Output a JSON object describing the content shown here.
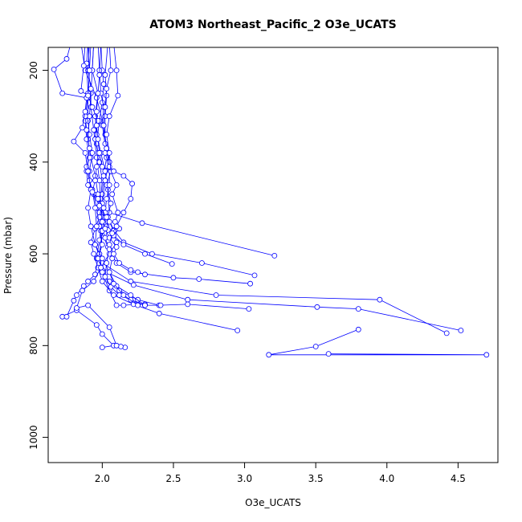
{
  "chart_data": {
    "type": "line",
    "title": "ATOM3 Northeast_Pacific_2 O3e_UCATS",
    "xlabel": "O3e_UCATS",
    "ylabel": "Pressure (mbar)",
    "xlim": [
      1.62,
      4.78
    ],
    "ylim": [
      1055,
      150
    ],
    "y_inverted": true,
    "x_ticks": [
      "2.0",
      "2.5",
      "3.0",
      "3.5",
      "4.0",
      "4.5"
    ],
    "y_ticks": [
      "200",
      "400",
      "600",
      "800",
      "1000"
    ],
    "grid": false,
    "series_color": "#0000ff",
    "marker": "open-circle",
    "series": [
      {
        "points": [
          [
            2.3,
            710
          ],
          [
            2.25,
            710
          ],
          [
            2.15,
            712
          ],
          [
            2.1,
            712
          ],
          [
            2.05,
            680
          ],
          [
            2.0,
            640
          ],
          [
            1.98,
            600
          ],
          [
            2.0,
            560
          ],
          [
            2.02,
            520
          ],
          [
            1.99,
            480
          ],
          [
            2.0,
            440
          ],
          [
            1.98,
            400
          ],
          [
            1.96,
            360
          ],
          [
            1.98,
            310
          ],
          [
            2.0,
            270
          ],
          [
            2.01,
            230
          ],
          [
            2.0,
            200
          ],
          [
            1.99,
            140
          ]
        ]
      },
      {
        "points": [
          [
            3.8,
            765
          ],
          [
            3.5,
            802
          ],
          [
            3.17,
            820
          ],
          [
            4.7,
            820
          ],
          [
            3.59,
            818
          ]
        ]
      },
      {
        "points": [
          [
            4.42,
            773
          ],
          [
            3.95,
            700
          ],
          [
            2.8,
            690
          ],
          [
            2.2,
            660
          ],
          [
            2.0,
            620
          ],
          [
            1.95,
            580
          ],
          [
            1.92,
            540
          ],
          [
            1.9,
            500
          ],
          [
            1.92,
            460
          ],
          [
            1.91,
            420
          ],
          [
            1.93,
            380
          ],
          [
            1.91,
            340
          ],
          [
            1.9,
            310
          ],
          [
            1.9,
            260
          ],
          [
            1.91,
            200
          ],
          [
            1.9,
            140
          ]
        ]
      },
      {
        "points": [
          [
            4.52,
            767
          ],
          [
            3.8,
            720
          ],
          [
            3.51,
            716
          ],
          [
            2.6,
            700
          ],
          [
            2.22,
            668
          ],
          [
            2.03,
            640
          ],
          [
            1.96,
            610
          ],
          [
            1.98,
            570
          ],
          [
            2.03,
            540
          ],
          [
            2.01,
            510
          ],
          [
            2.0,
            470
          ],
          [
            2.01,
            430
          ],
          [
            2.03,
            390
          ],
          [
            2.02,
            340
          ],
          [
            2.02,
            300
          ],
          [
            2.03,
            255
          ],
          [
            2.02,
            210
          ],
          [
            2.04,
            140
          ]
        ]
      },
      {
        "points": [
          [
            3.21,
            604
          ],
          [
            2.28,
            533
          ],
          [
            2.05,
            510
          ],
          [
            2.04,
            460
          ],
          [
            2.02,
            420
          ],
          [
            1.99,
            380
          ],
          [
            1.96,
            340
          ],
          [
            1.95,
            300
          ],
          [
            1.97,
            250
          ],
          [
            1.93,
            200
          ],
          [
            1.94,
            140
          ]
        ]
      },
      {
        "points": [
          [
            3.07,
            647
          ],
          [
            2.7,
            620
          ],
          [
            2.35,
            600
          ],
          [
            2.15,
            575
          ],
          [
            2.08,
            548
          ],
          [
            2.04,
            520
          ],
          [
            2.06,
            490
          ],
          [
            2.03,
            450
          ],
          [
            2.06,
            420
          ],
          [
            2.02,
            380
          ],
          [
            2.01,
            320
          ],
          [
            1.96,
            260
          ],
          [
            1.88,
            200
          ],
          [
            1.85,
            140
          ]
        ]
      },
      {
        "points": [
          [
            3.04,
            665
          ],
          [
            2.68,
            655
          ],
          [
            2.5,
            652
          ],
          [
            2.2,
            640
          ],
          [
            2.1,
            620
          ],
          [
            2.04,
            585
          ],
          [
            1.99,
            550
          ],
          [
            1.98,
            510
          ],
          [
            1.97,
            470
          ],
          [
            1.95,
            430
          ],
          [
            1.92,
            390
          ],
          [
            1.9,
            350
          ],
          [
            1.91,
            300
          ],
          [
            1.92,
            250
          ],
          [
            1.93,
            200
          ],
          [
            1.94,
            140
          ]
        ]
      },
      {
        "points": [
          [
            3.03,
            720
          ],
          [
            2.6,
            710
          ],
          [
            2.4,
            712
          ],
          [
            2.25,
            700
          ],
          [
            2.12,
            680
          ],
          [
            2.05,
            660
          ],
          [
            2.0,
            640
          ],
          [
            1.98,
            600
          ],
          [
            2.0,
            550
          ],
          [
            1.99,
            490
          ],
          [
            1.98,
            440
          ],
          [
            1.96,
            390
          ],
          [
            1.94,
            330
          ],
          [
            1.92,
            280
          ],
          [
            1.92,
            240
          ],
          [
            1.9,
            200
          ],
          [
            1.91,
            140
          ]
        ]
      },
      {
        "points": [
          [
            2.95,
            767
          ],
          [
            2.4,
            730
          ],
          [
            2.22,
            710
          ],
          [
            2.08,
            690
          ],
          [
            2.0,
            660
          ],
          [
            1.97,
            630
          ],
          [
            1.94,
            600
          ],
          [
            1.92,
            575
          ],
          [
            1.95,
            545
          ],
          [
            1.98,
            520
          ],
          [
            2.0,
            490
          ],
          [
            2.02,
            440
          ],
          [
            2.05,
            400
          ],
          [
            2.02,
            360
          ],
          [
            2.0,
            320
          ],
          [
            2.01,
            280
          ],
          [
            1.99,
            250
          ],
          [
            1.98,
            200
          ],
          [
            1.97,
            140
          ]
        ]
      },
      {
        "points": [
          [
            2.0,
            804
          ],
          [
            2.08,
            800
          ],
          [
            2.0,
            775
          ],
          [
            1.96,
            755
          ],
          [
            1.82,
            723
          ],
          [
            1.72,
            737
          ],
          [
            1.75,
            737
          ],
          [
            1.8,
            702
          ],
          [
            1.82,
            690
          ],
          [
            1.87,
            670
          ],
          [
            1.9,
            660
          ],
          [
            1.95,
            645
          ],
          [
            1.97,
            610
          ],
          [
            2.0,
            580
          ],
          [
            1.98,
            540
          ],
          [
            1.96,
            500
          ],
          [
            1.94,
            470
          ],
          [
            1.9,
            450
          ],
          [
            1.89,
            420
          ],
          [
            1.91,
            390
          ],
          [
            1.89,
            350
          ],
          [
            1.88,
            310
          ],
          [
            1.9,
            250
          ],
          [
            1.89,
            185
          ],
          [
            1.9,
            140
          ]
        ]
      },
      {
        "points": [
          [
            2.16,
            804
          ],
          [
            2.13,
            802
          ],
          [
            2.1,
            800
          ],
          [
            2.05,
            760
          ],
          [
            1.9,
            712
          ],
          [
            1.82,
            718
          ],
          [
            1.86,
            680
          ],
          [
            1.94,
            660
          ],
          [
            1.99,
            630
          ],
          [
            2.05,
            600
          ],
          [
            2.1,
            575
          ],
          [
            2.08,
            550
          ],
          [
            2.05,
            530
          ],
          [
            2.02,
            510
          ],
          [
            2.03,
            480
          ],
          [
            2.05,
            450
          ],
          [
            2.05,
            410
          ],
          [
            2.03,
            370
          ],
          [
            2.01,
            320
          ],
          [
            2.02,
            280
          ],
          [
            2.03,
            240
          ],
          [
            2.06,
            200
          ],
          [
            2.05,
            140
          ]
        ]
      },
      {
        "points": [
          [
            2.41,
            712
          ],
          [
            2.3,
            712
          ],
          [
            2.2,
            690
          ],
          [
            2.1,
            670
          ],
          [
            2.05,
            640
          ],
          [
            2.0,
            610
          ],
          [
            1.95,
            580
          ],
          [
            1.96,
            540
          ],
          [
            1.95,
            500
          ],
          [
            1.93,
            460
          ],
          [
            1.91,
            440
          ],
          [
            1.89,
            410
          ],
          [
            1.91,
            370
          ],
          [
            1.89,
            330
          ],
          [
            1.88,
            300
          ],
          [
            1.9,
            255
          ],
          [
            1.91,
            200
          ],
          [
            1.92,
            140
          ]
        ]
      },
      {
        "points": [
          [
            2.49,
            622
          ],
          [
            2.3,
            600
          ],
          [
            2.15,
            580
          ],
          [
            2.08,
            560
          ],
          [
            2.12,
            545
          ],
          [
            2.09,
            530
          ],
          [
            2.11,
            510
          ],
          [
            2.07,
            470
          ],
          [
            2.1,
            450
          ],
          [
            2.06,
            420
          ],
          [
            2.05,
            380
          ],
          [
            2.03,
            340
          ],
          [
            2.05,
            300
          ],
          [
            2.11,
            255
          ],
          [
            2.1,
            200
          ],
          [
            2.08,
            140
          ]
        ]
      },
      {
        "points": [
          [
            2.3,
            712
          ],
          [
            2.2,
            700
          ],
          [
            2.12,
            690
          ],
          [
            2.06,
            672
          ],
          [
            2.02,
            650
          ],
          [
            2.03,
            620
          ],
          [
            2.05,
            590
          ],
          [
            2.02,
            565
          ],
          [
            2.04,
            548
          ],
          [
            2.03,
            520
          ],
          [
            1.98,
            495
          ],
          [
            1.92,
            460
          ],
          [
            1.9,
            420
          ],
          [
            1.88,
            380
          ],
          [
            1.8,
            355
          ],
          [
            1.86,
            325
          ],
          [
            1.88,
            290
          ],
          [
            1.89,
            260
          ],
          [
            1.72,
            250
          ],
          [
            1.66,
            198
          ],
          [
            1.75,
            175
          ],
          [
            1.78,
            140
          ]
        ]
      },
      {
        "points": [
          [
            2.25,
            712
          ],
          [
            2.15,
            690
          ],
          [
            2.08,
            665
          ],
          [
            2.05,
            640
          ],
          [
            2.07,
            610
          ],
          [
            2.1,
            585
          ],
          [
            2.05,
            565
          ],
          [
            2.02,
            545
          ],
          [
            2.0,
            530
          ],
          [
            2.01,
            500
          ],
          [
            1.97,
            480
          ],
          [
            1.93,
            465
          ],
          [
            1.95,
            440
          ],
          [
            1.96,
            410
          ],
          [
            1.97,
            380
          ],
          [
            1.95,
            350
          ],
          [
            1.97,
            310
          ],
          [
            1.93,
            280
          ],
          [
            1.9,
            255
          ],
          [
            1.85,
            245
          ],
          [
            1.87,
            190
          ],
          [
            1.88,
            140
          ]
        ]
      },
      {
        "points": [
          [
            2.3,
            645
          ],
          [
            2.25,
            640
          ],
          [
            2.2,
            635
          ],
          [
            2.12,
            620
          ],
          [
            2.08,
            600
          ],
          [
            2.05,
            580
          ],
          [
            2.07,
            555
          ],
          [
            2.1,
            540
          ],
          [
            2.15,
            510
          ],
          [
            2.2,
            480
          ],
          [
            2.21,
            447
          ],
          [
            2.15,
            430
          ],
          [
            2.08,
            420
          ],
          [
            2.0,
            410
          ],
          [
            1.98,
            380
          ],
          [
            1.97,
            350
          ],
          [
            1.96,
            320
          ],
          [
            1.96,
            290
          ],
          [
            1.97,
            250
          ],
          [
            1.98,
            210
          ],
          [
            1.99,
            140
          ]
        ]
      }
    ]
  }
}
